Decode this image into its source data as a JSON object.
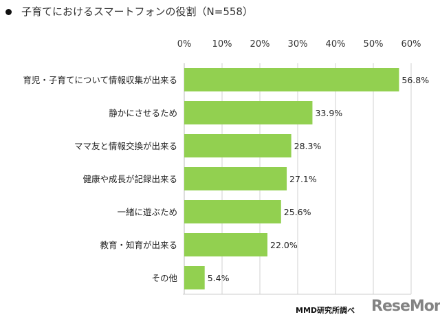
{
  "chart_data": {
    "type": "bar",
    "orientation": "horizontal",
    "title": "子育てにおけるスマートフォンの役割（N=558）",
    "categories": [
      "育児・子育てについて情報収集が出来る",
      "静かにさせるため",
      "ママ友と情報交換が出来る",
      "健康や成長が記録出来る",
      "一緒に遊ぶため",
      "教育・知育が出来る",
      "その他"
    ],
    "values": [
      56.8,
      33.9,
      28.3,
      27.1,
      25.6,
      22.0,
      5.4
    ],
    "data_labels": [
      "56.8%",
      "33.9%",
      "28.3%",
      "27.1%",
      "25.6%",
      "22.0%",
      "5.4%"
    ],
    "xlim": [
      0,
      60
    ],
    "xticks": [
      "0%",
      "10%",
      "20%",
      "30%",
      "40%",
      "50%",
      "60%"
    ],
    "axis_position": "top",
    "grid": true,
    "bar_color": "#92d050"
  },
  "source": "MMD研究所調べ",
  "watermark": "ReseMom"
}
